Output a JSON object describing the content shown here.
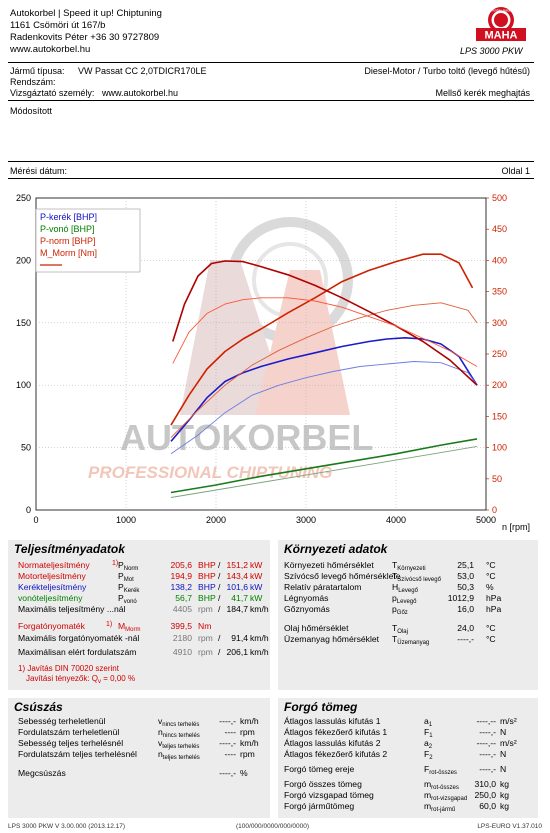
{
  "header": {
    "lines": [
      "Autokorbel | Speed it up! Chiptuning",
      "1161 Csömöri út 167/b",
      "Radenkovits Péter +36 30 9727809",
      "www.autokorbel.hu"
    ],
    "logo_ring_text": "Maschinenbau Haldenwang",
    "logo_text": "MAHA",
    "logo_caption": "LPS 3000 PKW"
  },
  "vehicle": {
    "type_label": "Jármű típusa:",
    "type_value": "VW Passat CC 2,0TDICR170LE",
    "engine": "Diesel-Motor / Turbo toltő (levegő hűtésű)",
    "plate_label": "Rendszám:",
    "tester_label": "Vizsgáztató személy:",
    "tester_value": "www.autokorbel.hu",
    "drive": "Mellső kerék meghajtás",
    "modified": "Módosított",
    "date_label": "Mérési dátum:",
    "page": "Oldal 1"
  },
  "chart_data": {
    "type": "line",
    "x_label": "n [rpm]",
    "xlim": [
      0,
      5000
    ],
    "x_ticks": [
      "0",
      "1000",
      "2000",
      "3000",
      "4000",
      "5000"
    ],
    "ylim_left": [
      0,
      250
    ],
    "y_ticks_left": [
      "0",
      "50",
      "100",
      "150",
      "200",
      "250"
    ],
    "ylim_right": [
      0,
      500
    ],
    "y_ticks_right": [
      "0",
      "50",
      "100",
      "150",
      "200",
      "250",
      "300",
      "350",
      "400",
      "450",
      "500"
    ],
    "legend": [
      "P-kerék [BHP]",
      "P-vonó [BHP]",
      "P-norm [BHP]",
      "M_Morm [Nm]"
    ],
    "watermark": [
      "AUTOKORBEL",
      "PROFESSIONAL CHIPTUNING"
    ],
    "series": [
      {
        "name": "P-kerék [BHP]",
        "axis": "left",
        "color": "#1a1acc",
        "width": 1.6,
        "x": [
          1500,
          1700,
          1900,
          2100,
          2300,
          2500,
          2800,
          3100,
          3400,
          3700,
          3900,
          4100,
          4300,
          4500,
          4700,
          4900
        ],
        "y": [
          55,
          72,
          90,
          103,
          110,
          115,
          121,
          126,
          131,
          135,
          137,
          138,
          137,
          133,
          123,
          100
        ]
      },
      {
        "name": "P-kerék lost",
        "axis": "left",
        "color": "#6b7de0",
        "width": 0.9,
        "x": [
          1500,
          1800,
          2100,
          2400,
          2700,
          3000,
          3300,
          3600,
          3900,
          4200,
          4500,
          4800,
          4900
        ],
        "y": [
          45,
          60,
          78,
          92,
          100,
          106,
          111,
          115,
          117,
          119,
          118,
          110,
          100
        ]
      },
      {
        "name": "P-vonó [BHP]",
        "axis": "left",
        "color": "#1a7a1a",
        "width": 1.6,
        "x": [
          1500,
          2000,
          2500,
          3000,
          3500,
          4000,
          4500,
          4900
        ],
        "y": [
          14,
          20,
          27,
          33,
          39,
          45,
          52,
          57
        ]
      },
      {
        "name": "P-vonó thin",
        "axis": "left",
        "color": "#7aa57a",
        "width": 0.9,
        "x": [
          1500,
          2000,
          2500,
          3000,
          3500,
          4000,
          4500,
          4900
        ],
        "y": [
          10,
          16,
          22,
          28,
          34,
          40,
          46,
          51
        ]
      },
      {
        "name": "P-norm [BHP]",
        "axis": "left",
        "color": "#cc2200",
        "width": 1.6,
        "x": [
          1500,
          1700,
          1900,
          2100,
          2300,
          2500,
          2800,
          3100,
          3400,
          3700,
          4000,
          4300,
          4500,
          4700,
          4850
        ],
        "y": [
          68,
          92,
          113,
          127,
          137,
          145,
          158,
          170,
          183,
          192,
          199,
          205,
          205,
          198,
          178
        ]
      },
      {
        "name": "P-norm thin",
        "axis": "left",
        "color": "#e0603a",
        "width": 0.9,
        "x": [
          1500,
          1800,
          2100,
          2400,
          2700,
          3000,
          3300,
          3600,
          3900,
          4200,
          4500,
          4800,
          4900
        ],
        "y": [
          58,
          80,
          100,
          116,
          128,
          138,
          147,
          154,
          160,
          164,
          166,
          160,
          150
        ]
      },
      {
        "name": "M_Morm [Nm]",
        "axis": "right",
        "color": "#b00000",
        "width": 1.6,
        "x": [
          1520,
          1650,
          1800,
          1950,
          2100,
          2300,
          2500,
          2800,
          3100,
          3400,
          3700,
          4000,
          4300,
          4600,
          4900
        ],
        "y": [
          270,
          330,
          375,
          395,
          399,
          398,
          390,
          377,
          360,
          340,
          318,
          295,
          270,
          240,
          200
        ]
      },
      {
        "name": "M_Morm thin",
        "axis": "right",
        "color": "#ff5533",
        "width": 0.9,
        "x": [
          1520,
          1700,
          1900,
          2100,
          2300,
          2500,
          2800,
          3100,
          3400,
          3700,
          4000,
          4300,
          4600,
          4900
        ],
        "y": [
          235,
          285,
          315,
          330,
          337,
          340,
          340,
          335,
          325,
          310,
          295,
          275,
          255,
          230
        ]
      }
    ]
  },
  "perf": {
    "title": "Teljesítményadatok",
    "rows": [
      {
        "label": "Normateljesítmény",
        "mark": "1)",
        "sym": "P",
        "symsub": "Norm",
        "v1": "205,6",
        "u1": "BHP",
        "sep": "/",
        "v2": "151,2",
        "u2": "kW",
        "cls": "red"
      },
      {
        "label": "Motorteljesítmény",
        "mark": "",
        "sym": "P",
        "symsub": "Mot",
        "v1": "194,9",
        "u1": "BHP",
        "sep": "/",
        "v2": "143,4",
        "u2": "kW",
        "cls": "red"
      },
      {
        "label": "Kerékteljesítmény",
        "mark": "",
        "sym": "P",
        "symsub": "Kerék",
        "v1": "138,2",
        "u1": "BHP",
        "sep": "/",
        "v2": "101,6",
        "u2": "kW",
        "cls": "blue"
      },
      {
        "label": "vonóteljesítmény",
        "mark": "",
        "sym": "P",
        "symsub": "vonó",
        "v1": "56,7",
        "u1": "BHP",
        "sep": "/",
        "v2": "41,7",
        "u2": "kW",
        "cls": "green"
      },
      {
        "label": "Maximális teljesítmény ...nál",
        "mark": "",
        "sym": "",
        "symsub": "",
        "v1": "4405",
        "u1": "rpm",
        "sep": "/",
        "v2": "184,7",
        "u2": "km/h",
        "cls": ""
      }
    ],
    "torque_label": "Forgatónyomaték",
    "torque_mark": "1)",
    "torque_sym": "M",
    "torque_symsub": "Morm",
    "torque_val": "399,5",
    "torque_unit": "Nm",
    "rows2": [
      {
        "label": "Maximális forgatónyomaték -nál",
        "v1": "2180",
        "u1": "rpm",
        "sep": "/",
        "v2": "91,4",
        "u2": "km/h"
      },
      {
        "label": "Maximálisan elért fordulatszám",
        "v1": "4910",
        "u1": "rpm",
        "sep": "/",
        "v2": "206,1",
        "u2": "km/h"
      }
    ],
    "note1": "1) Javítás DIN 70020 szerint",
    "note2_label": "Javítási tényezők: Q",
    "note2_sub": "v",
    "note2_val": " =     0,00 %"
  },
  "env": {
    "title": "Környezeti adatok",
    "rows": [
      {
        "label": "Környezeti hőmérséklet",
        "sym": "T",
        "symsub": "Környezeti",
        "val": "25,1",
        "unit": "°C"
      },
      {
        "label": "Szívócső levegő hőmérséklete",
        "sym": "T",
        "symsub": "Szívócső levegő",
        "val": "53,0",
        "unit": "°C"
      },
      {
        "label": "Relatív páratartalom",
        "sym": "H",
        "symsub": "Levegő",
        "val": "50,3",
        "unit": "%"
      },
      {
        "label": "Légnyomás",
        "sym": "p",
        "symsub": "Levegő",
        "val": "1012,9",
        "unit": "hPa"
      },
      {
        "label": "Gőznyomás",
        "sym": "p",
        "symsub": "Gőz",
        "val": "16,0",
        "unit": "hPa"
      },
      {
        "label": "Olaj hőmérséklet",
        "sym": "T",
        "symsub": "Olaj",
        "val": "24,0",
        "unit": "°C"
      },
      {
        "label": "Üzemanyag hőmérséklet",
        "sym": "T",
        "symsub": "Üzemanyag",
        "val": "----,-",
        "unit": "°C"
      }
    ]
  },
  "slip": {
    "title": "Csúszás",
    "rows": [
      {
        "label": "Sebesség terheletlenül",
        "sym": "v",
        "symsub": "nincs terhelés",
        "val": "----,-",
        "unit": "km/h"
      },
      {
        "label": "Fordulatszám terheletlenül",
        "sym": "n",
        "symsub": "nincs terhelés",
        "val": "----",
        "unit": "rpm"
      },
      {
        "label": "Sebesség teljes terhelésnél",
        "sym": "v",
        "symsub": "teljes terhelés",
        "val": "----,-",
        "unit": "km/h"
      },
      {
        "label": "Fordulatszám teljes terhelésnél",
        "sym": "n",
        "symsub": "teljes terhelés",
        "val": "----",
        "unit": "rpm"
      },
      {
        "label": "Megcsúszás",
        "sym": "",
        "symsub": "",
        "val": "----,-",
        "unit": "%"
      }
    ]
  },
  "inertia": {
    "title": "Forgó tömeg",
    "rows": [
      {
        "label": "Átlagos lassulás kifutás 1",
        "sym": "a",
        "symsub": "1",
        "val": "----,--",
        "unit": "m/s²"
      },
      {
        "label": "Átlagos fékezőerő kifutás 1",
        "sym": "F",
        "symsub": "1",
        "val": "----,-",
        "unit": "N"
      },
      {
        "label": "Átlagos lassulás kifutás 2",
        "sym": "a",
        "symsub": "2",
        "val": "----,--",
        "unit": "m/s²"
      },
      {
        "label": "Átlagos fékezőerő kifutás 2",
        "sym": "F",
        "symsub": "2",
        "val": "----,-",
        "unit": "N"
      },
      {
        "label": "Forgó tömeg ereje",
        "sym": "F",
        "symsub": "rot-összes",
        "val": "----,-",
        "unit": "N"
      },
      {
        "label": "Forgó összes tömeg",
        "sym": "m",
        "symsub": "rot-összes",
        "val": "310,0",
        "unit": "kg"
      },
      {
        "label": "Forgó vizsgapad tömeg",
        "sym": "m",
        "symsub": "rot-vizsgapad",
        "val": "250,0",
        "unit": "kg"
      },
      {
        "label": "Forgó járműtömeg",
        "sym": "m",
        "symsub": "rot-jármű",
        "val": "60,0",
        "unit": "kg"
      }
    ]
  },
  "footer": {
    "left": "LPS 3000 PKW V 3.00.000 (2013.12.17)",
    "mid": "(100/000/0000/000/0000)",
    "right": "LPS-EURO V1.37.010"
  }
}
